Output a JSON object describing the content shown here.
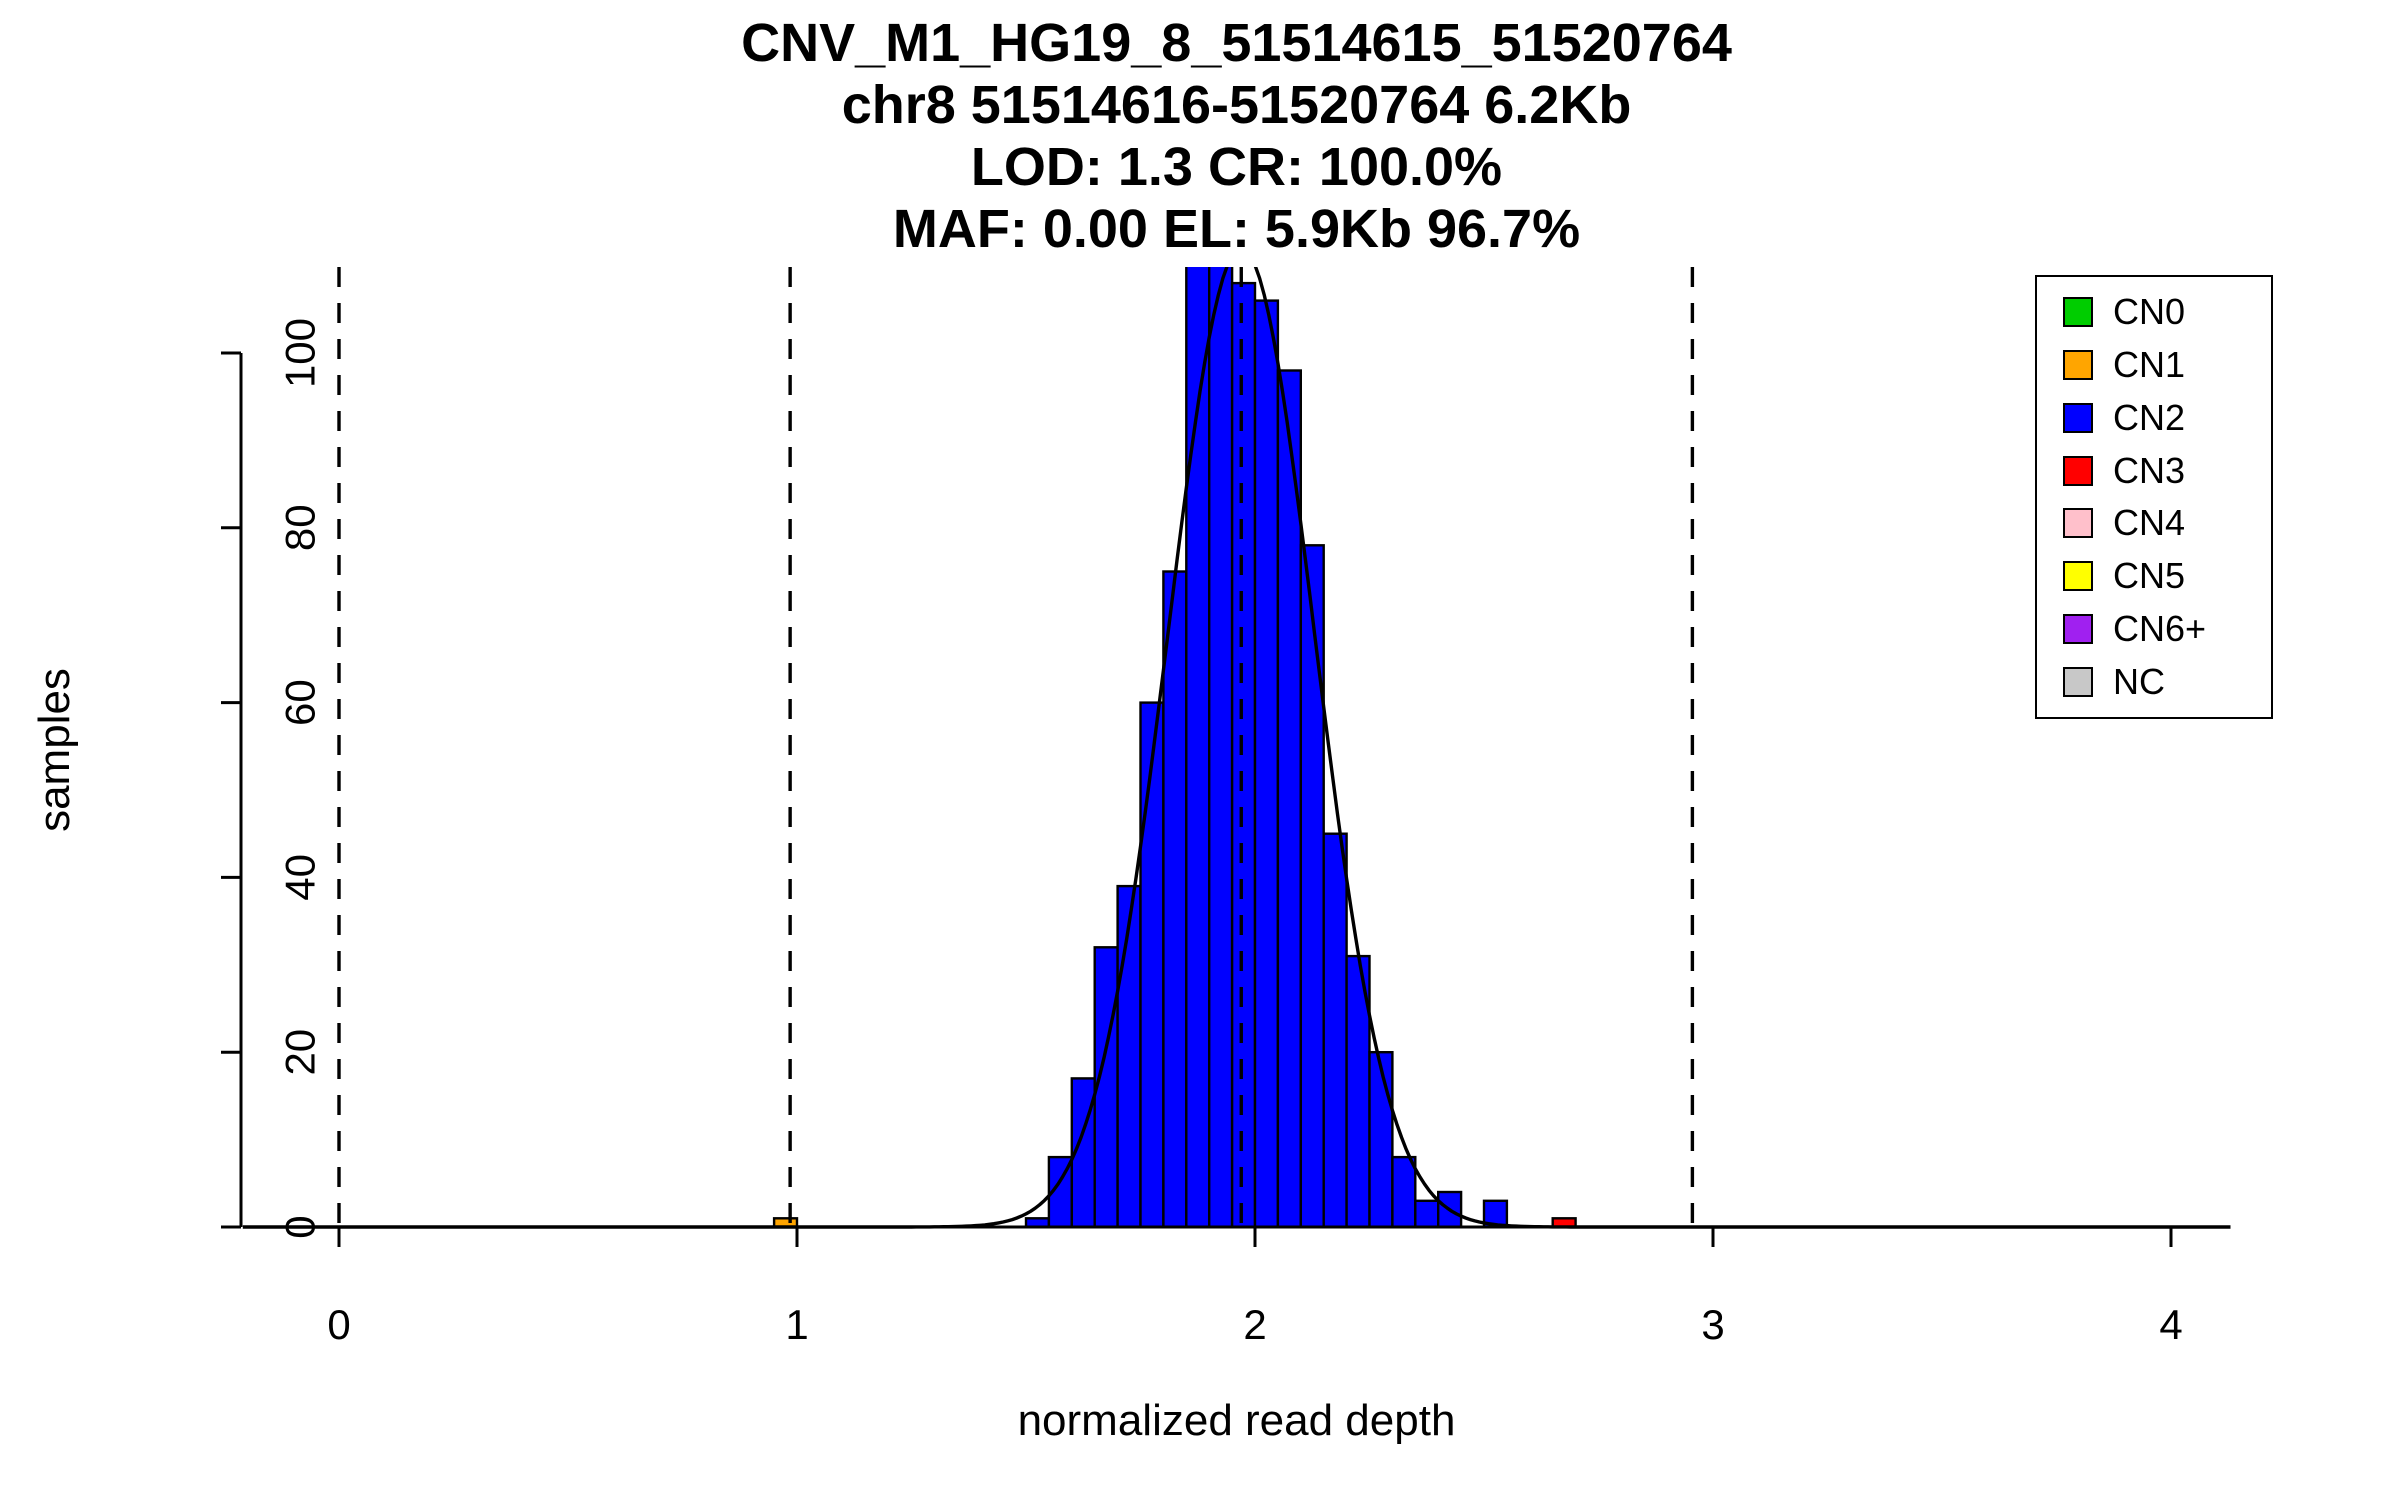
{
  "chart_data": {
    "type": "bar",
    "subtype": "histogram",
    "title_lines": [
      "CNV_M1_HG19_8_51514615_51520764",
      "chr8 51514616-51520764 6.2Kb",
      "LOD: 1.3 CR: 100.0%",
      "MAF: 0.00 EL: 5.9Kb 96.7%"
    ],
    "xlabel": "normalized read depth",
    "ylabel": "samples",
    "x_ticks": [
      0,
      1,
      2,
      3,
      4
    ],
    "y_ticks": [
      0,
      20,
      40,
      60,
      80,
      100
    ],
    "xlim": [
      -0.21,
      4.13
    ],
    "ylim": [
      0,
      110
    ],
    "grid": false,
    "bin_width": 0.05,
    "bars": [
      {
        "x": 0.95,
        "count": 1,
        "cn": "CN1"
      },
      {
        "x": 1.5,
        "count": 1,
        "cn": "CN2"
      },
      {
        "x": 1.55,
        "count": 8,
        "cn": "CN2"
      },
      {
        "x": 1.6,
        "count": 17,
        "cn": "CN2"
      },
      {
        "x": 1.65,
        "count": 32,
        "cn": "CN2"
      },
      {
        "x": 1.7,
        "count": 39,
        "cn": "CN2"
      },
      {
        "x": 1.75,
        "count": 60,
        "cn": "CN2"
      },
      {
        "x": 1.8,
        "count": 75,
        "cn": "CN2"
      },
      {
        "x": 1.85,
        "count": 111,
        "cn": "CN2"
      },
      {
        "x": 1.9,
        "count": 112,
        "cn": "CN2"
      },
      {
        "x": 1.95,
        "count": 108,
        "cn": "CN2"
      },
      {
        "x": 2.0,
        "count": 106,
        "cn": "CN2"
      },
      {
        "x": 2.05,
        "count": 98,
        "cn": "CN2"
      },
      {
        "x": 2.1,
        "count": 78,
        "cn": "CN2"
      },
      {
        "x": 2.15,
        "count": 45,
        "cn": "CN2"
      },
      {
        "x": 2.2,
        "count": 31,
        "cn": "CN2"
      },
      {
        "x": 2.25,
        "count": 20,
        "cn": "CN2"
      },
      {
        "x": 2.3,
        "count": 8,
        "cn": "CN2"
      },
      {
        "x": 2.35,
        "count": 3,
        "cn": "CN2"
      },
      {
        "x": 2.4,
        "count": 4,
        "cn": "CN2"
      },
      {
        "x": 2.5,
        "count": 3,
        "cn": "CN2"
      },
      {
        "x": 2.65,
        "count": 1,
        "cn": "CN3"
      }
    ],
    "dashed_guides_x": [
      0,
      0.985,
      1.97,
      2.955
    ],
    "fit_curve": {
      "shape": "gaussian",
      "mean": 1.97,
      "sd": 0.16,
      "peak": 112
    },
    "legend": {
      "position": "top-right",
      "items": [
        {
          "label": "CN0",
          "color": "#00CD00"
        },
        {
          "label": "CN1",
          "color": "#FFA500"
        },
        {
          "label": "CN2",
          "color": "#0000FF"
        },
        {
          "label": "CN3",
          "color": "#FF0000"
        },
        {
          "label": "CN4",
          "color": "#FFC0CB"
        },
        {
          "label": "CN5",
          "color": "#FFFF00"
        },
        {
          "label": "CN6+",
          "color": "#A020F0"
        },
        {
          "label": "NC",
          "color": "#C8C8C8"
        }
      ]
    },
    "colors": {
      "axis": "#000000",
      "curve": "#000000",
      "background": "#FFFFFF"
    }
  }
}
